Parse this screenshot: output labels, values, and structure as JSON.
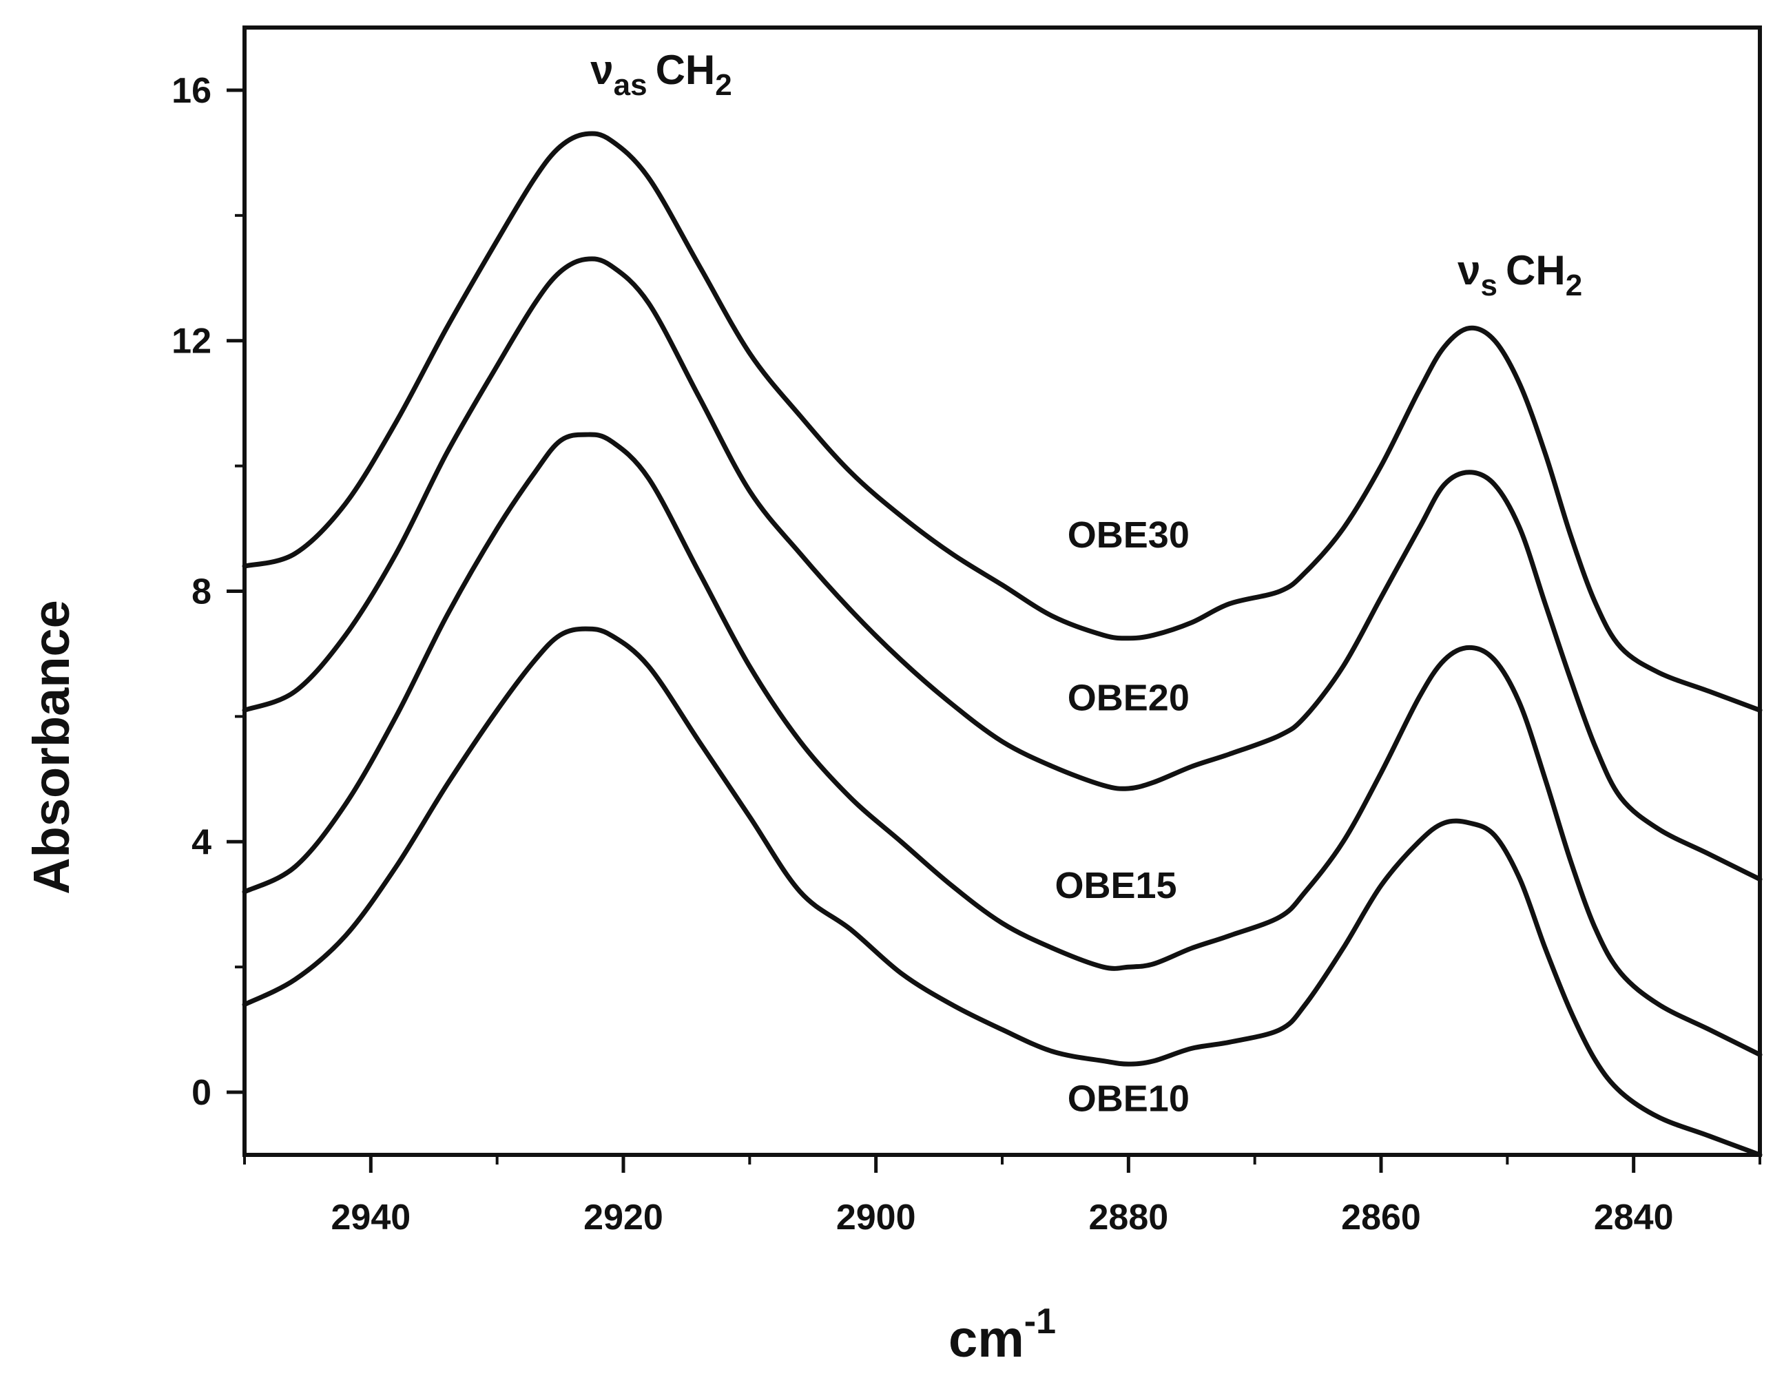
{
  "chart_data": {
    "type": "line",
    "title": "",
    "xlabel": "cm",
    "xlabel_superscript": "-1",
    "ylabel": "Absorbance",
    "xlim": [
      2950,
      2830
    ],
    "ylim": [
      -1,
      17
    ],
    "x_ticks": [
      2940,
      2920,
      2900,
      2880,
      2860,
      2840
    ],
    "y_ticks": [
      0,
      4,
      8,
      12,
      16
    ],
    "grid": false,
    "annotations": [
      {
        "symbol": "ν",
        "subscript": "as",
        "text": "CH",
        "text_subscript": "2",
        "x": 2917,
        "y": 16.1
      },
      {
        "symbol": "ν",
        "subscript": "s",
        "text": "CH",
        "text_subscript": "2",
        "x": 2849,
        "y": 12.9
      }
    ],
    "series": [
      {
        "name": "OBE30",
        "label_pos": {
          "x": 2880,
          "y": 8.7
        },
        "points": [
          [
            2950,
            8.4
          ],
          [
            2946,
            8.6
          ],
          [
            2942,
            9.4
          ],
          [
            2938,
            10.7
          ],
          [
            2934,
            12.2
          ],
          [
            2930,
            13.6
          ],
          [
            2927,
            14.6
          ],
          [
            2925,
            15.1
          ],
          [
            2923,
            15.3
          ],
          [
            2921,
            15.2
          ],
          [
            2918,
            14.6
          ],
          [
            2914,
            13.2
          ],
          [
            2910,
            11.8
          ],
          [
            2906,
            10.8
          ],
          [
            2902,
            9.9
          ],
          [
            2898,
            9.2
          ],
          [
            2894,
            8.6
          ],
          [
            2890,
            8.1
          ],
          [
            2886,
            7.6
          ],
          [
            2882,
            7.3
          ],
          [
            2880,
            7.25
          ],
          [
            2878,
            7.3
          ],
          [
            2875,
            7.5
          ],
          [
            2872,
            7.8
          ],
          [
            2868,
            8.0
          ],
          [
            2866,
            8.3
          ],
          [
            2863,
            9.0
          ],
          [
            2860,
            10.0
          ],
          [
            2857,
            11.2
          ],
          [
            2855,
            11.9
          ],
          [
            2853,
            12.2
          ],
          [
            2851,
            12.0
          ],
          [
            2849,
            11.3
          ],
          [
            2847,
            10.2
          ],
          [
            2845,
            8.9
          ],
          [
            2843,
            7.8
          ],
          [
            2841,
            7.1
          ],
          [
            2838,
            6.7
          ],
          [
            2834,
            6.4
          ],
          [
            2830,
            6.1
          ]
        ]
      },
      {
        "name": "OBE20",
        "label_pos": {
          "x": 2880,
          "y": 6.1
        },
        "points": [
          [
            2950,
            6.1
          ],
          [
            2946,
            6.4
          ],
          [
            2942,
            7.3
          ],
          [
            2938,
            8.6
          ],
          [
            2934,
            10.2
          ],
          [
            2930,
            11.6
          ],
          [
            2927,
            12.6
          ],
          [
            2925,
            13.1
          ],
          [
            2923,
            13.3
          ],
          [
            2921,
            13.2
          ],
          [
            2918,
            12.6
          ],
          [
            2914,
            11.1
          ],
          [
            2910,
            9.6
          ],
          [
            2906,
            8.6
          ],
          [
            2902,
            7.7
          ],
          [
            2898,
            6.9
          ],
          [
            2894,
            6.2
          ],
          [
            2890,
            5.6
          ],
          [
            2886,
            5.2
          ],
          [
            2882,
            4.9
          ],
          [
            2880,
            4.85
          ],
          [
            2878,
            4.95
          ],
          [
            2875,
            5.2
          ],
          [
            2872,
            5.4
          ],
          [
            2868,
            5.7
          ],
          [
            2866,
            6.0
          ],
          [
            2863,
            6.8
          ],
          [
            2860,
            7.9
          ],
          [
            2857,
            9.0
          ],
          [
            2855,
            9.7
          ],
          [
            2853,
            9.9
          ],
          [
            2851,
            9.7
          ],
          [
            2849,
            9.0
          ],
          [
            2847,
            7.8
          ],
          [
            2845,
            6.6
          ],
          [
            2843,
            5.5
          ],
          [
            2841,
            4.7
          ],
          [
            2838,
            4.2
          ],
          [
            2834,
            3.8
          ],
          [
            2830,
            3.4
          ]
        ]
      },
      {
        "name": "OBE15",
        "label_pos": {
          "x": 2881,
          "y": 3.1
        },
        "points": [
          [
            2950,
            3.2
          ],
          [
            2946,
            3.6
          ],
          [
            2942,
            4.6
          ],
          [
            2938,
            6.0
          ],
          [
            2934,
            7.6
          ],
          [
            2930,
            9.0
          ],
          [
            2927,
            9.9
          ],
          [
            2925,
            10.4
          ],
          [
            2923,
            10.5
          ],
          [
            2921,
            10.4
          ],
          [
            2918,
            9.8
          ],
          [
            2914,
            8.3
          ],
          [
            2910,
            6.8
          ],
          [
            2906,
            5.6
          ],
          [
            2902,
            4.7
          ],
          [
            2898,
            4.0
          ],
          [
            2894,
            3.3
          ],
          [
            2890,
            2.7
          ],
          [
            2886,
            2.3
          ],
          [
            2882,
            2.0
          ],
          [
            2880,
            2.0
          ],
          [
            2878,
            2.05
          ],
          [
            2875,
            2.3
          ],
          [
            2872,
            2.5
          ],
          [
            2868,
            2.8
          ],
          [
            2866,
            3.2
          ],
          [
            2863,
            4.0
          ],
          [
            2860,
            5.1
          ],
          [
            2857,
            6.3
          ],
          [
            2855,
            6.9
          ],
          [
            2853,
            7.1
          ],
          [
            2851,
            6.9
          ],
          [
            2849,
            6.2
          ],
          [
            2847,
            5.0
          ],
          [
            2845,
            3.7
          ],
          [
            2843,
            2.6
          ],
          [
            2841,
            1.9
          ],
          [
            2838,
            1.4
          ],
          [
            2834,
            1.0
          ],
          [
            2830,
            0.6
          ]
        ]
      },
      {
        "name": "OBE10",
        "label_pos": {
          "x": 2880,
          "y": -0.3
        },
        "points": [
          [
            2950,
            1.4
          ],
          [
            2946,
            1.8
          ],
          [
            2942,
            2.5
          ],
          [
            2938,
            3.6
          ],
          [
            2934,
            4.9
          ],
          [
            2930,
            6.1
          ],
          [
            2927,
            6.9
          ],
          [
            2925,
            7.3
          ],
          [
            2923,
            7.4
          ],
          [
            2921,
            7.3
          ],
          [
            2918,
            6.8
          ],
          [
            2914,
            5.6
          ],
          [
            2910,
            4.4
          ],
          [
            2906,
            3.2
          ],
          [
            2902,
            2.6
          ],
          [
            2898,
            1.9
          ],
          [
            2894,
            1.4
          ],
          [
            2890,
            1.0
          ],
          [
            2886,
            0.65
          ],
          [
            2882,
            0.5
          ],
          [
            2880,
            0.45
          ],
          [
            2878,
            0.5
          ],
          [
            2875,
            0.7
          ],
          [
            2872,
            0.8
          ],
          [
            2868,
            1.0
          ],
          [
            2866,
            1.4
          ],
          [
            2863,
            2.3
          ],
          [
            2860,
            3.3
          ],
          [
            2857,
            4.0
          ],
          [
            2855,
            4.3
          ],
          [
            2853,
            4.3
          ],
          [
            2851,
            4.1
          ],
          [
            2849,
            3.4
          ],
          [
            2847,
            2.3
          ],
          [
            2845,
            1.3
          ],
          [
            2843,
            0.5
          ],
          [
            2841,
            0.0
          ],
          [
            2838,
            -0.4
          ],
          [
            2834,
            -0.7
          ],
          [
            2830,
            -1.0
          ]
        ]
      }
    ]
  }
}
